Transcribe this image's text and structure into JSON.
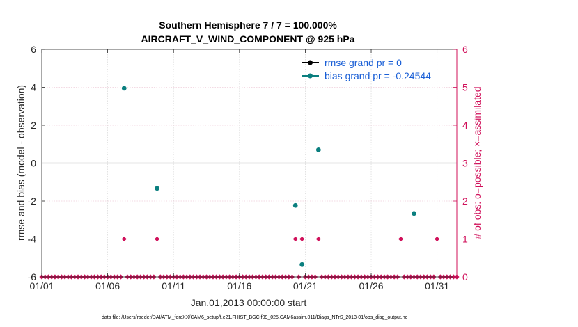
{
  "chart_data": {
    "type": "scatter",
    "title_line1": "Southern Hemisphere 7 / 7 = 100.000%",
    "title_line2": "AIRCRAFT_V_WIND_COMPONENT @ 925 hPa",
    "xlabel": "Jan.01,2013 00:00:00 start",
    "ylabel": "rmse and bias (model - observation)",
    "ylabel_right": "# of obs: o=possible; ×=assimilated",
    "xlim": [
      0,
      31.5
    ],
    "ylim": [
      -6,
      6
    ],
    "ylim_right": [
      0,
      6
    ],
    "x_ticks": [
      {
        "day": 0,
        "label": "01/01"
      },
      {
        "day": 5,
        "label": "01/06"
      },
      {
        "day": 10,
        "label": "01/11"
      },
      {
        "day": 15,
        "label": "01/16"
      },
      {
        "day": 20,
        "label": "01/21"
      },
      {
        "day": 25,
        "label": "01/26"
      },
      {
        "day": 30,
        "label": "01/31"
      }
    ],
    "y_ticks": [
      {
        "v": 6,
        "label": "6"
      },
      {
        "v": 4,
        "label": "4"
      },
      {
        "v": 2,
        "label": "2"
      },
      {
        "v": 0,
        "label": "0"
      },
      {
        "v": -2,
        "label": "-2"
      },
      {
        "v": -4,
        "label": "-4"
      },
      {
        "v": -6,
        "label": "-6"
      }
    ],
    "y_ticks_right": [
      {
        "v": 6,
        "label": "6"
      },
      {
        "v": 5,
        "label": "5"
      },
      {
        "v": 4,
        "label": "4"
      },
      {
        "v": 3,
        "label": "3"
      },
      {
        "v": 2,
        "label": "2"
      },
      {
        "v": 1,
        "label": "1"
      },
      {
        "v": 0,
        "label": "0"
      }
    ],
    "zero_line": 0,
    "series": [
      {
        "name": "rmse grand pr = 0",
        "color": "#000000",
        "points": []
      },
      {
        "name": "bias grand pr = -0.24544",
        "color": "#0b7f7f",
        "points": [
          {
            "x": 6.25,
            "y": 3.95
          },
          {
            "x": 8.75,
            "y": -1.33
          },
          {
            "x": 19.25,
            "y": -2.23
          },
          {
            "x": 19.75,
            "y": -5.35
          },
          {
            "x": 21.0,
            "y": 0.7
          },
          {
            "x": 28.25,
            "y": -2.65
          }
        ]
      }
    ],
    "obs_counts": {
      "color": "#d0105a",
      "start": 0,
      "step": 0.25,
      "count": 127,
      "nonzero": [
        {
          "x": 6.25,
          "n": 1
        },
        {
          "x": 8.75,
          "n": 1
        },
        {
          "x": 19.25,
          "n": 1
        },
        {
          "x": 19.75,
          "n": 1
        },
        {
          "x": 21.0,
          "n": 1
        },
        {
          "x": 27.25,
          "n": 1
        },
        {
          "x": 30.0,
          "n": 1
        }
      ]
    },
    "footnote": "data file: /Users/raeder/DAI/ATM_forcXX/CAM6_setup/f.e21.FHIST_BGC.f09_025.CAM6assim.011/Diags_NTrS_2013-01/obs_diag_output.nc"
  }
}
